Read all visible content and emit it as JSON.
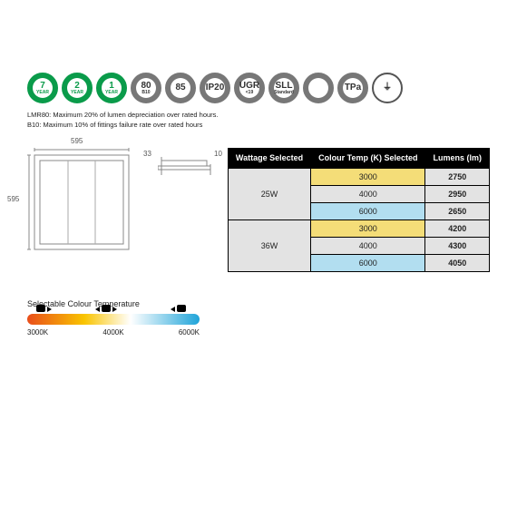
{
  "badges": [
    {
      "style": "green",
      "big": "7",
      "small": "YEAR"
    },
    {
      "style": "green",
      "big": "2",
      "small": "YEAR"
    },
    {
      "style": "green",
      "big": "1",
      "small": "YEAR"
    },
    {
      "style": "grey",
      "big": "80",
      "small": "B10"
    },
    {
      "style": "grey",
      "big": "85",
      "small": ""
    },
    {
      "style": "grey",
      "big": "IP20",
      "small": ""
    },
    {
      "style": "grey",
      "big": "UGR",
      "small": "<19"
    },
    {
      "style": "grey",
      "big": "SLL",
      "small": "Standard"
    },
    {
      "style": "grey",
      "big": "",
      "small": ""
    },
    {
      "style": "grey",
      "big": "TPa",
      "small": ""
    },
    {
      "style": "outline",
      "big": "⏚",
      "small": ""
    }
  ],
  "notes": {
    "line1": "LMR80: Maximum 20% of lumen depreciation over rated hours.",
    "line2": "B10: Maximum 10% of fittings failure rate over rated hours"
  },
  "dimensions": {
    "width": "595",
    "height": "595",
    "depth1": "33",
    "depth2": "10"
  },
  "table": {
    "headers": {
      "wattage": "Wattage Selected",
      "cct": "Colour Temp (K) Selected",
      "lumens": "Lumens (lm)"
    },
    "groups": [
      {
        "wattage": "25W",
        "rows": [
          {
            "k": "3000",
            "lm": "2750",
            "tone": "warm"
          },
          {
            "k": "4000",
            "lm": "2950",
            "tone": "neutral"
          },
          {
            "k": "6000",
            "lm": "2650",
            "tone": "cool"
          }
        ]
      },
      {
        "wattage": "36W",
        "rows": [
          {
            "k": "3000",
            "lm": "4200",
            "tone": "warm"
          },
          {
            "k": "4000",
            "lm": "4300",
            "tone": "neutral"
          },
          {
            "k": "6000",
            "lm": "4050",
            "tone": "cool"
          }
        ]
      }
    ]
  },
  "cct": {
    "title": "Selectable Colour Temperature",
    "labels": [
      "3000K",
      "4000K",
      "6000K"
    ],
    "gradient": [
      "#e94e1b",
      "#f9c400",
      "#ffffff",
      "#1fa4d9"
    ]
  },
  "colors": {
    "green": "#0a9b4a",
    "grey": "#777777",
    "warm": "#f4dd78",
    "cool": "#b2def0",
    "neutral": "#e3e3e3",
    "table_header_bg": "#000000",
    "table_header_fg": "#ffffff",
    "background": "#ffffff"
  }
}
